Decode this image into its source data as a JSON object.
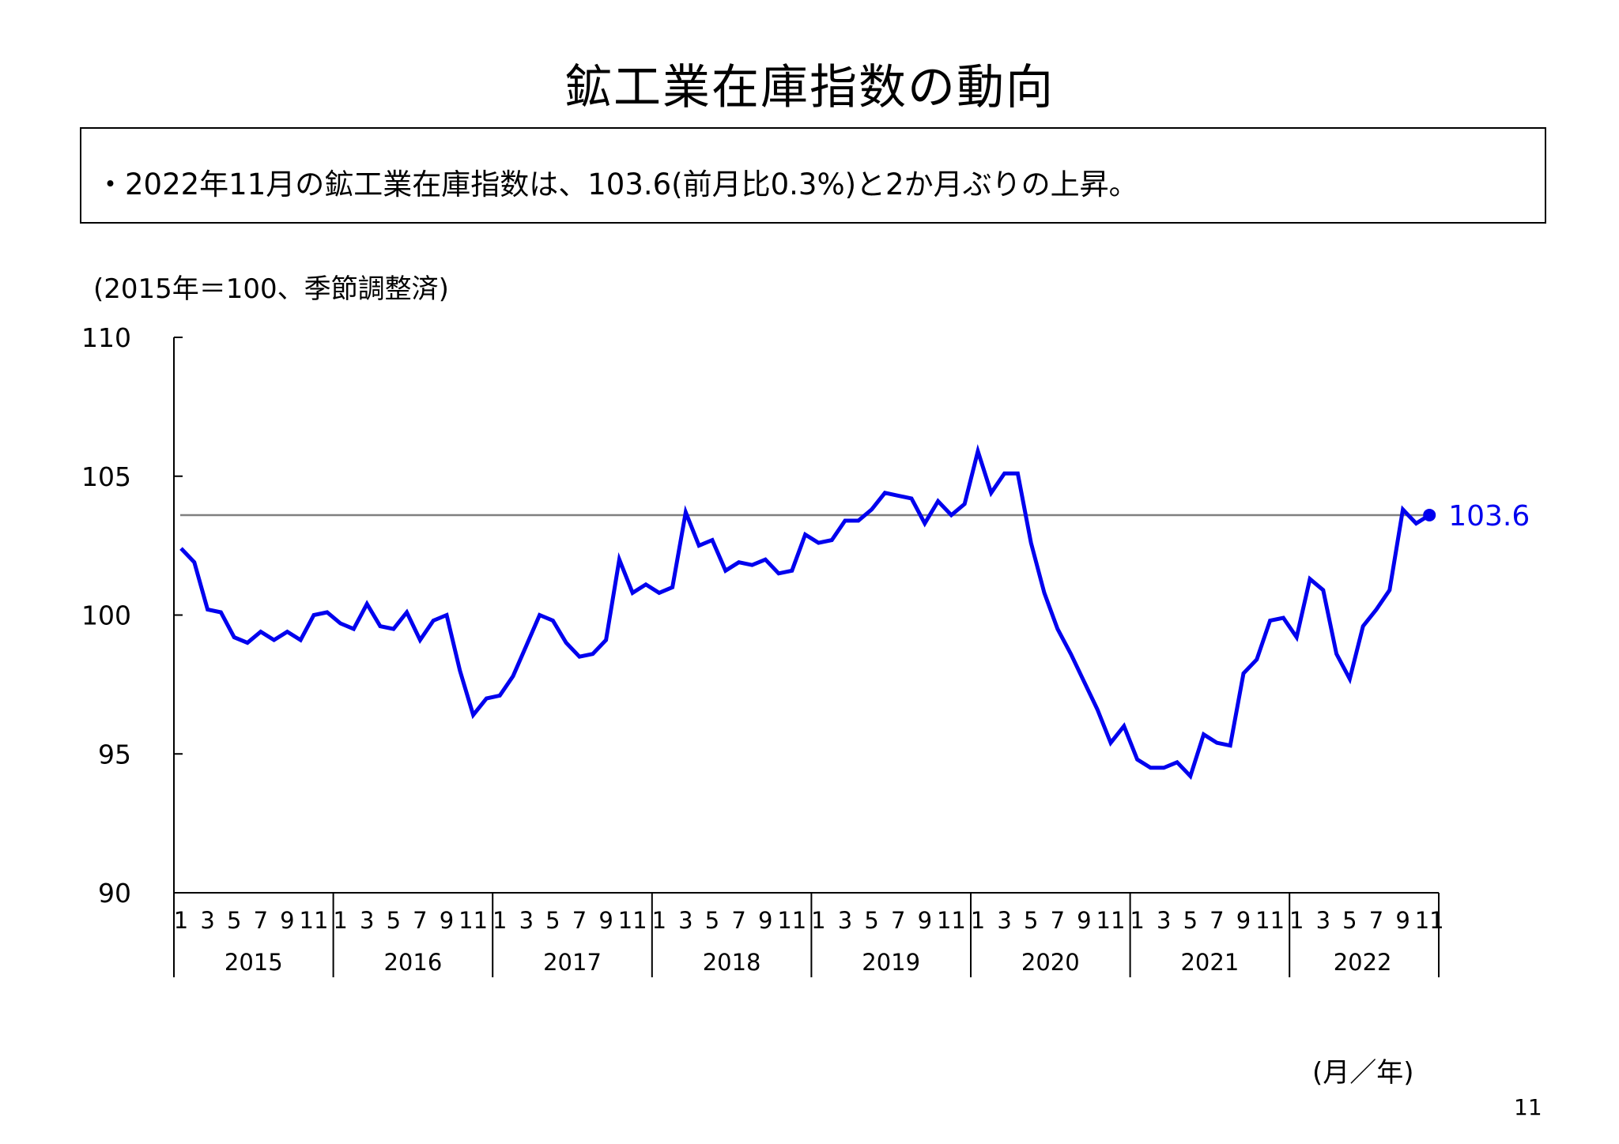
{
  "page": {
    "title": "鉱工業在庫指数の動向",
    "summary": "・2022年11月の鉱工業在庫指数は、103.6(前月比0.3%)と2か月ぶりの上昇。",
    "unit_note": "(2015年＝100、季節調整済)",
    "x_unit": "(月／年)",
    "page_number": "11"
  },
  "chart_data": {
    "type": "line",
    "title": "",
    "xlabel": "(月／年)",
    "ylabel": "(2015年＝100、季節調整済)",
    "ylim": [
      90,
      110
    ],
    "yticks": [
      "90",
      "95",
      "100",
      "105",
      "110"
    ],
    "years": [
      "2015",
      "2016",
      "2017",
      "2018",
      "2019",
      "2020",
      "2021",
      "2022"
    ],
    "month_tick_labels": [
      "1",
      "3",
      "5",
      "7",
      "9",
      "11"
    ],
    "last_year_month_tick_labels": [
      "1",
      "3",
      "5",
      "7",
      "9",
      "11"
    ],
    "reference_line": 103.6,
    "latest_label": "103.6",
    "color": "#0000ee",
    "grid": false,
    "series": [
      {
        "values": [
          102.4,
          101.9,
          100.2,
          100.1,
          99.2,
          99.0,
          99.4,
          99.1,
          99.4,
          99.1,
          100.0,
          100.1,
          99.7,
          99.5,
          100.4,
          99.6,
          99.5,
          100.1,
          99.1,
          99.8,
          100.0,
          98.0,
          96.4,
          97.0,
          97.1,
          97.8,
          98.9,
          100.0,
          99.8,
          99.0,
          98.5,
          98.6,
          99.1,
          102.0,
          100.8,
          101.1,
          100.8,
          101.0,
          103.7,
          102.5,
          102.7,
          101.6,
          101.9,
          101.8,
          102.0,
          101.5,
          101.6,
          102.9,
          102.6,
          102.7,
          103.4,
          103.4,
          103.8,
          104.4,
          104.3,
          104.2,
          103.3,
          104.1,
          103.6,
          104.0,
          105.9,
          104.4,
          105.1,
          105.1,
          102.6,
          100.8,
          99.5,
          98.6,
          97.6,
          96.6,
          95.4,
          96.0,
          94.8,
          94.5,
          94.5,
          94.7,
          94.2,
          95.7,
          95.4,
          95.3,
          97.9,
          98.4,
          99.8,
          99.9,
          99.2,
          101.3,
          100.9,
          98.6,
          97.7,
          99.6,
          100.2,
          100.9,
          103.8,
          103.3,
          103.6
        ]
      }
    ]
  }
}
